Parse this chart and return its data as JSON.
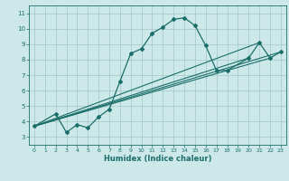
{
  "title": "",
  "xlabel": "Humidex (Indice chaleur)",
  "xlim": [
    -0.5,
    23.5
  ],
  "ylim": [
    2.5,
    11.5
  ],
  "xticks": [
    0,
    1,
    2,
    3,
    4,
    5,
    6,
    7,
    8,
    9,
    10,
    11,
    12,
    13,
    14,
    15,
    16,
    17,
    18,
    19,
    20,
    21,
    22,
    23
  ],
  "yticks": [
    3,
    4,
    5,
    6,
    7,
    8,
    9,
    10,
    11
  ],
  "bg_color": "#cde8e8",
  "grid_color": "#aacccc",
  "line_color": "#1a6e6a",
  "curve1_x": [
    0,
    2,
    3,
    4,
    5,
    6,
    7,
    8,
    9,
    10,
    11,
    12,
    13,
    14,
    15,
    16,
    17,
    18,
    20,
    21,
    22,
    23
  ],
  "curve1_y": [
    3.7,
    4.5,
    3.3,
    3.8,
    3.6,
    4.3,
    4.8,
    6.6,
    8.4,
    8.7,
    9.7,
    10.1,
    10.6,
    10.7,
    10.2,
    8.9,
    7.3,
    7.3,
    8.1,
    9.1,
    8.1,
    8.5
  ],
  "line1_x": [
    0,
    23
  ],
  "line1_y": [
    3.7,
    8.5
  ],
  "line2_x": [
    0,
    22
  ],
  "line2_y": [
    3.7,
    8.1
  ],
  "line3_x": [
    0,
    21
  ],
  "line3_y": [
    3.7,
    9.1
  ],
  "line4_x": [
    0,
    20
  ],
  "line4_y": [
    3.7,
    8.1
  ]
}
